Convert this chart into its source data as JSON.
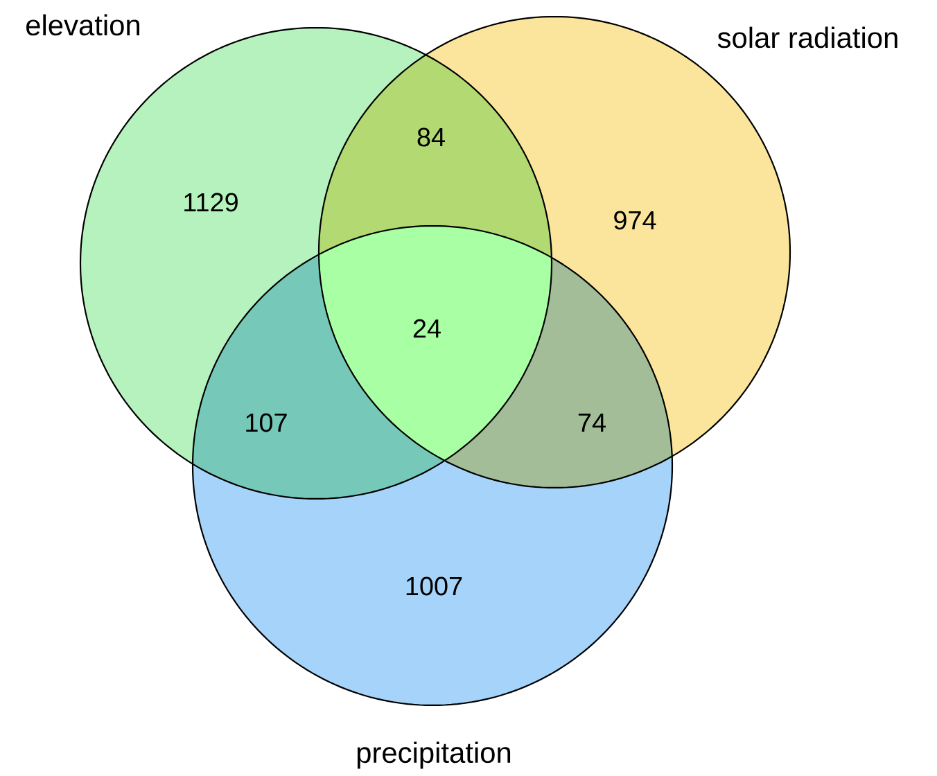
{
  "chart_data": {
    "type": "other",
    "categories": [
      "elevation",
      "solar radiation",
      "precipitation"
    ],
    "values": [
      1129,
      974,
      1007
    ],
    "colors": [
      "#b6f2bd",
      "#fbe59c",
      "#a6d3f9"
    ],
    "data_labels": true,
    "annotations": [
      "84",
      "107",
      "74",
      "24"
    ]
  }
}
